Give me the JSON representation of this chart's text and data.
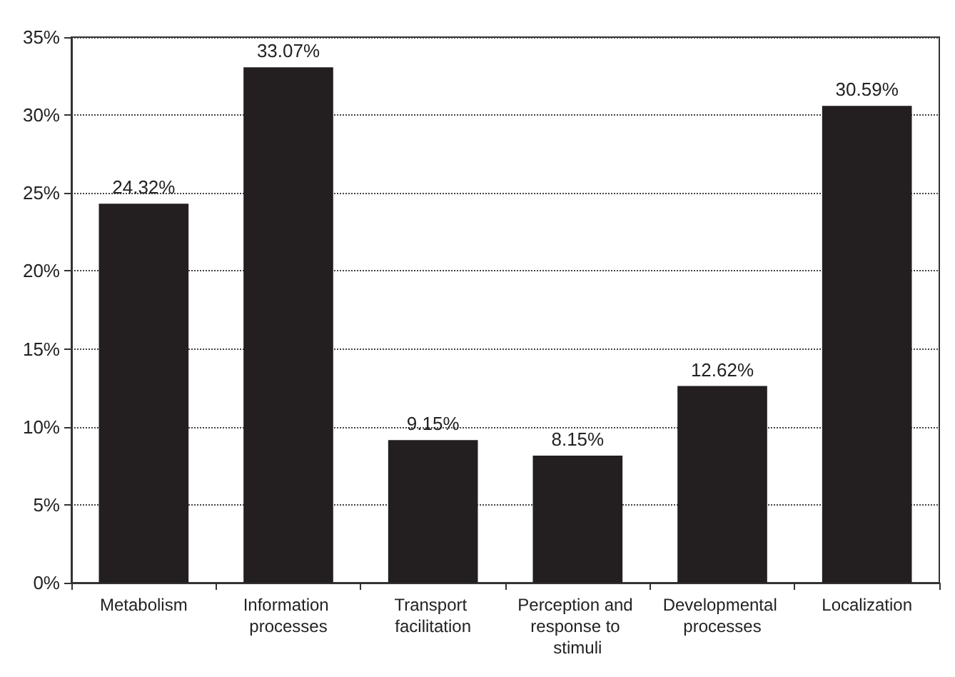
{
  "chart_data": {
    "type": "bar",
    "categories": [
      "Metabolism",
      "Information processes",
      "Transport facilitation",
      "Perception and response to stimuli",
      "Developmental processes",
      "Localization"
    ],
    "values": [
      24.32,
      33.07,
      9.15,
      8.15,
      12.62,
      30.59
    ],
    "value_labels": [
      "24.32%",
      "33.07%",
      "9.15%",
      "8.15%",
      "12.62%",
      "30.59%"
    ],
    "color": "#231f20",
    "ylim": [
      0,
      35
    ],
    "yticks": [
      {
        "value": 0,
        "label": "0%"
      },
      {
        "value": 5,
        "label": "5%"
      },
      {
        "value": 10,
        "label": "10%"
      },
      {
        "value": 15,
        "label": "15%"
      },
      {
        "value": 20,
        "label": "20%"
      },
      {
        "value": 25,
        "label": "25%"
      },
      {
        "value": 30,
        "label": "30%"
      },
      {
        "value": 35,
        "label": "35%"
      }
    ],
    "grid": "y"
  }
}
